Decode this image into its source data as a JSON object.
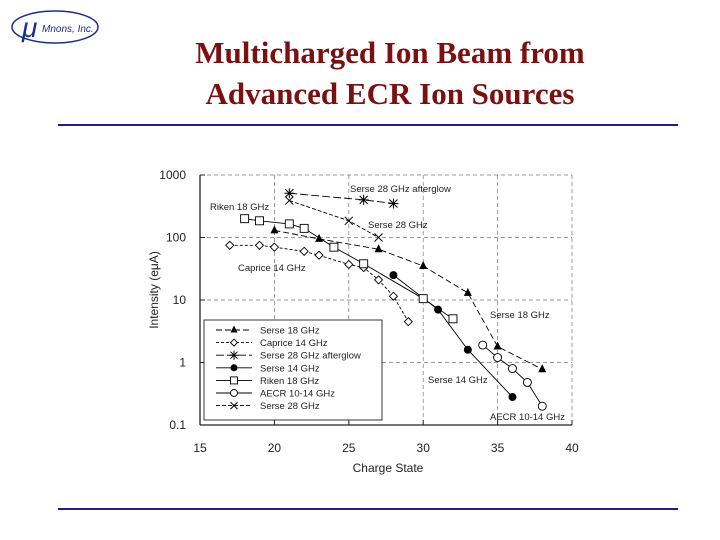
{
  "header": {
    "logo_symbol": "μ",
    "logo_text": "Mnons, Inc.",
    "title_line1": "Multicharged Ion Beam from",
    "title_line2": "Advanced ECR Ion Sources"
  },
  "colors": {
    "title": "#7a1010",
    "rule": "#1f1f86",
    "logo": "#1a2f8a"
  },
  "chart_data": {
    "type": "line",
    "xlabel": "Charge State",
    "ylabel": "Intensity (eμA)",
    "xlim": [
      15,
      40
    ],
    "ylim": [
      0.1,
      1000
    ],
    "yscale": "log",
    "x_ticks": [
      15,
      20,
      25,
      30,
      35,
      40
    ],
    "y_ticks": [
      1000,
      100,
      10,
      1,
      0.1
    ],
    "y_tick_labels": [
      "1000",
      "100",
      "10",
      "1",
      "0.1"
    ],
    "grid": "dashed",
    "legend_position": "bottom-left",
    "series": [
      {
        "name": "Serse 18 GHz",
        "marker": "triangle",
        "dash": "6,3",
        "label": "Serse 18 GHz",
        "x": [
          20,
          23,
          27,
          30,
          33,
          35,
          38
        ],
        "y": [
          130,
          95,
          65,
          35,
          13,
          1.8,
          0.78
        ]
      },
      {
        "name": "Caprice 14 GHz",
        "marker": "diamond",
        "dash": "3,2",
        "label": "Caprice 14 GHz",
        "x": [
          17,
          19,
          20,
          22,
          23,
          25,
          26,
          27,
          28,
          29
        ],
        "y": [
          75,
          75,
          70,
          60,
          52,
          37,
          33,
          21,
          11.5,
          4.5
        ]
      },
      {
        "name": "Serse 28 GHz afterglow",
        "marker": "star",
        "dash": "8,3",
        "label": "Serse 28 GHz afterglow",
        "x": [
          21,
          26,
          28
        ],
        "y": [
          510,
          400,
          350
        ]
      },
      {
        "name": "Serse 14 GHz",
        "marker": "circle",
        "dash": "",
        "label": "Serse 14 GHz",
        "x": [
          28,
          31,
          33,
          36
        ],
        "y": [
          25,
          7,
          1.6,
          0.28
        ]
      },
      {
        "name": "Riken 18 GHz",
        "marker": "square",
        "dash": "",
        "label": "Riken 18 GHz",
        "x": [
          18,
          19,
          21,
          22,
          24,
          26,
          30,
          32
        ],
        "y": [
          200,
          185,
          165,
          140,
          70,
          38,
          10.5,
          5
        ]
      },
      {
        "name": "AECR 10-14 GHz",
        "marker": "open-circle",
        "dash": "",
        "label": "AECR 10-14 GHz",
        "x": [
          34,
          35,
          36,
          37,
          38
        ],
        "y": [
          1.9,
          1.2,
          0.8,
          0.48,
          0.2
        ]
      },
      {
        "name": "Serse 28 GHz",
        "marker": "x",
        "dash": "4,2",
        "label": "Serse 28 GHz",
        "x": [
          21,
          25,
          27
        ],
        "y": [
          390,
          185,
          100
        ]
      }
    ]
  }
}
